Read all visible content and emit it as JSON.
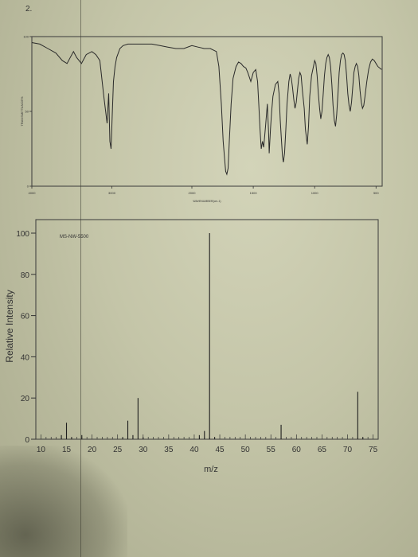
{
  "question_number": "2.",
  "chart_data": [
    {
      "type": "line",
      "xlabel": "WAVENUMBER(cm-1)",
      "ylabel": "TRANSMITTANCE%",
      "x_ticks": [
        "4000",
        "3000",
        "2000",
        "1500",
        "1000",
        "500"
      ],
      "y_ticks": [
        "100",
        "50",
        "0"
      ],
      "xlim": [
        4000,
        450
      ],
      "ylim": [
        0,
        100
      ],
      "grid": false,
      "series": [
        {
          "x": [
            4000,
            3900,
            3800,
            3700,
            3620,
            3560,
            3520,
            3480,
            3440,
            3380,
            3320,
            3250,
            3200,
            3150,
            3100,
            3060,
            3040,
            3025,
            3010,
            2995,
            2980,
            2960,
            2940,
            2900,
            2860,
            2800,
            2700,
            2600,
            2500,
            2400,
            2300,
            2200,
            2100,
            2000,
            1950,
            1900,
            1850,
            1800,
            1780,
            1760,
            1745,
            1725,
            1715,
            1705,
            1695,
            1680,
            1665,
            1640,
            1620,
            1600,
            1580,
            1560,
            1545,
            1520,
            1500,
            1480,
            1465,
            1455,
            1445,
            1435,
            1425,
            1415,
            1400,
            1385,
            1375,
            1370,
            1360,
            1350,
            1340,
            1320,
            1300,
            1290,
            1280,
            1270,
            1262,
            1255,
            1245,
            1235,
            1225,
            1210,
            1200,
            1190,
            1180,
            1170,
            1160,
            1150,
            1140,
            1130,
            1120,
            1110,
            1100,
            1085,
            1075,
            1060,
            1050,
            1040,
            1025,
            1010,
            1000,
            990,
            980,
            970,
            960,
            950,
            940,
            930,
            920,
            910,
            900,
            890,
            880,
            870,
            860,
            850,
            840,
            830,
            820,
            810,
            800,
            790,
            780,
            770,
            760,
            750,
            740,
            730,
            720,
            710,
            700,
            690,
            680,
            670,
            660,
            650,
            640,
            630,
            620,
            610,
            600,
            590,
            575,
            560,
            545,
            530,
            515,
            500,
            485,
            470,
            455
          ],
          "y": [
            96,
            95,
            92,
            89,
            84,
            82,
            86,
            90,
            86,
            82,
            88,
            90,
            88,
            84,
            60,
            42,
            62,
            30,
            25,
            48,
            70,
            80,
            86,
            92,
            94,
            95,
            95,
            95,
            95,
            94,
            93,
            92,
            92,
            94,
            93,
            92,
            92,
            90,
            80,
            55,
            30,
            10,
            8,
            12,
            30,
            55,
            72,
            80,
            83,
            82,
            80,
            79,
            76,
            70,
            76,
            78,
            70,
            55,
            38,
            25,
            30,
            26,
            40,
            55,
            35,
            22,
            38,
            50,
            60,
            68,
            70,
            62,
            44,
            30,
            20,
            16,
            22,
            38,
            55,
            70,
            75,
            72,
            66,
            58,
            52,
            56,
            64,
            72,
            76,
            74,
            64,
            52,
            38,
            28,
            40,
            60,
            74,
            80,
            84,
            82,
            74,
            62,
            52,
            45,
            50,
            62,
            74,
            82,
            86,
            88,
            86,
            80,
            68,
            54,
            44,
            40,
            48,
            62,
            76,
            84,
            88,
            89,
            88,
            84,
            74,
            62,
            54,
            50,
            56,
            66,
            76,
            80,
            82,
            80,
            74,
            64,
            56,
            52,
            54,
            60,
            70,
            78,
            83,
            85,
            84,
            82,
            80,
            79,
            78
          ]
        }
      ]
    },
    {
      "type": "bar",
      "annotation": "MS-NW-5500",
      "xlabel": "m/z",
      "ylabel": "Relative Intensity",
      "xlim": [
        9,
        76
      ],
      "ylim": [
        0,
        100
      ],
      "x_ticks": [
        10,
        15,
        20,
        25,
        30,
        35,
        40,
        45,
        50,
        55,
        60,
        65,
        70,
        75
      ],
      "y_ticks": [
        0,
        20,
        40,
        60,
        80,
        100
      ],
      "grid": false,
      "x": [
        14,
        15,
        16,
        18,
        26,
        27,
        28,
        29,
        30,
        41,
        42,
        43,
        44,
        57,
        72,
        73
      ],
      "values": [
        2,
        8,
        1,
        2,
        1,
        9,
        2,
        20,
        1,
        2,
        4,
        100,
        1,
        7,
        23,
        1
      ]
    }
  ]
}
